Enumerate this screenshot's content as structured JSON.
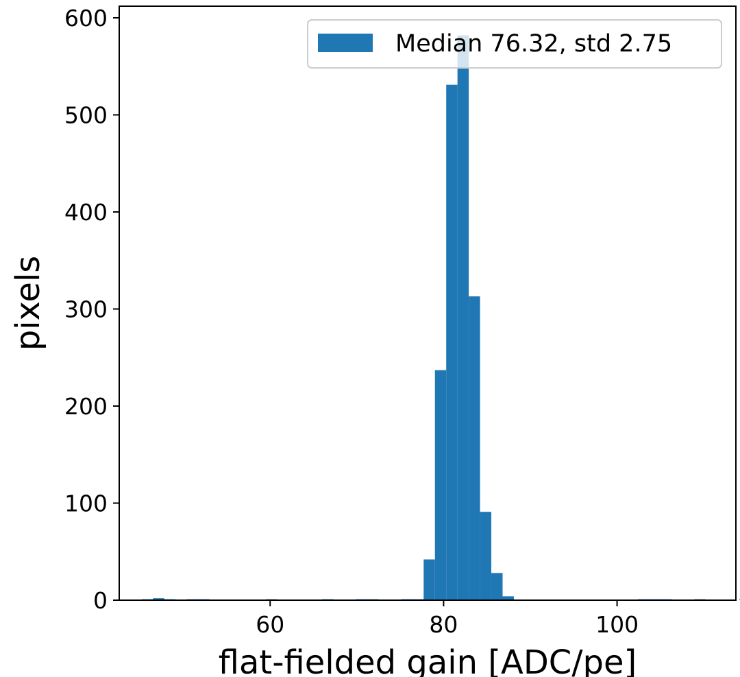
{
  "chart_data": {
    "type": "bar",
    "xlabel": "flat-fielded gain [ADC/pe]",
    "ylabel": "pixels",
    "xlim": [
      42.6,
      113.7
    ],
    "ylim": [
      0,
      612
    ],
    "x_ticks": [
      60,
      80,
      100
    ],
    "y_ticks": [
      0,
      100,
      200,
      300,
      400,
      500,
      600
    ],
    "grid": false,
    "bar_color": "#1f77b4",
    "bin_width": 1.3,
    "bin_start": 45.2,
    "values": [
      1,
      2,
      1,
      0,
      1,
      1,
      0,
      0,
      0,
      0,
      0,
      1,
      0,
      0,
      0,
      0,
      1,
      0,
      0,
      1,
      1,
      0,
      0,
      1,
      1,
      42,
      237,
      531,
      582,
      313,
      91,
      28,
      4,
      0,
      0,
      0,
      0,
      0,
      0,
      0,
      0,
      0,
      0,
      0,
      1,
      1,
      1,
      0,
      0,
      1,
      0,
      0,
      0,
      1,
      1,
      1,
      1,
      1,
      1,
      1,
      1,
      1
    ],
    "legend": {
      "position": "top-right",
      "entries": [
        {
          "label": "Median 76.32, std 2.75",
          "color": "#1f77b4"
        }
      ]
    }
  }
}
